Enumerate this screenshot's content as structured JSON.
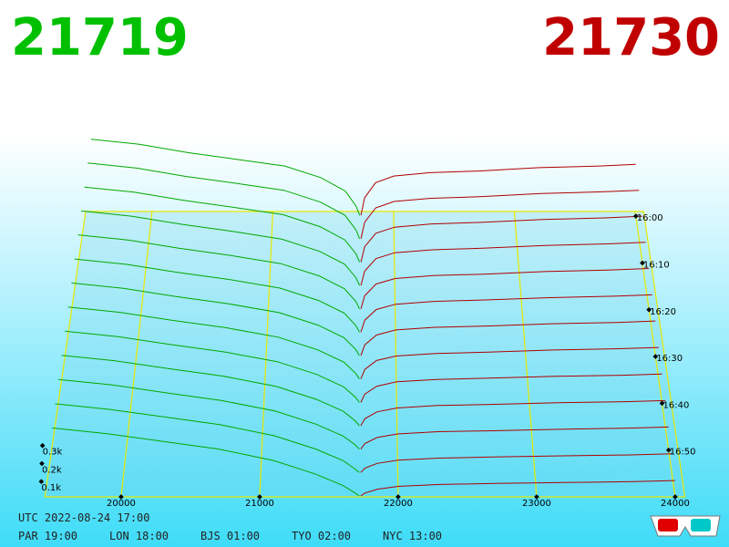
{
  "chart_data": {
    "type": "depth3d",
    "best_bid": 21719,
    "best_ask": 21730,
    "bid_color": "#00a800",
    "ask_color": "#b00000",
    "floor_color": "#e8e800",
    "xlim": [
      19450,
      24070
    ],
    "xticks": [
      20000,
      21000,
      22000,
      23000,
      24000
    ],
    "ylim": [
      0,
      500
    ],
    "yticks": [
      {
        "value": 100,
        "label": "0.1k"
      },
      {
        "value": 200,
        "label": "0.2k"
      },
      {
        "value": 300,
        "label": "0.3k"
      }
    ],
    "tlim": [
      "15:59",
      "17:00"
    ],
    "tticks": [
      "16:00",
      "16:10",
      "16:20",
      "16:30",
      "16:40",
      "16:50"
    ],
    "bid_prices": [
      21719,
      21690,
      21600,
      21400,
      21100,
      20700,
      20300,
      19900,
      19500
    ],
    "ask_prices": [
      21730,
      21760,
      21850,
      22000,
      22300,
      22700,
      23200,
      23700,
      24000
    ],
    "snapshots": [
      {
        "time": "16:00",
        "bids": [
          5,
          60,
          150,
          230,
          300,
          340,
          380,
          430,
          460
        ],
        "asks": [
          5,
          110,
          200,
          240,
          260,
          270,
          290,
          300,
          310
        ]
      },
      {
        "time": "16:05",
        "bids": [
          5,
          57,
          143,
          221,
          291,
          333,
          373,
          422,
          452
        ],
        "asks": [
          5,
          103,
          187,
          225,
          244,
          253,
          272,
          282,
          291
        ]
      },
      {
        "time": "16:10",
        "bids": [
          5,
          53,
          135,
          212,
          282,
          325,
          365,
          413,
          443
        ],
        "asks": [
          5,
          95,
          173,
          209,
          228,
          237,
          254,
          263,
          273
        ]
      },
      {
        "time": "16:15",
        "bids": [
          5,
          50,
          128,
          202,
          272,
          318,
          358,
          405,
          435
        ],
        "asks": [
          5,
          88,
          160,
          194,
          211,
          220,
          236,
          245,
          254
        ]
      },
      {
        "time": "16:20",
        "bids": [
          5,
          47,
          120,
          193,
          263,
          310,
          350,
          397,
          427
        ],
        "asks": [
          5,
          80,
          147,
          178,
          195,
          203,
          218,
          227,
          235
        ]
      },
      {
        "time": "16:25",
        "bids": [
          5,
          43,
          113,
          184,
          254,
          303,
          343,
          388,
          418
        ],
        "asks": [
          5,
          73,
          133,
          163,
          179,
          187,
          200,
          208,
          216
        ]
      },
      {
        "time": "16:30",
        "bids": [
          5,
          40,
          105,
          175,
          245,
          295,
          335,
          380,
          410
        ],
        "asks": [
          5,
          65,
          120,
          148,
          163,
          170,
          183,
          190,
          198
        ]
      },
      {
        "time": "16:35",
        "bids": [
          5,
          37,
          98,
          166,
          236,
          288,
          328,
          372,
          402
        ],
        "asks": [
          5,
          58,
          107,
          132,
          146,
          153,
          165,
          172,
          179
        ]
      },
      {
        "time": "16:40",
        "bids": [
          5,
          33,
          90,
          157,
          227,
          280,
          320,
          363,
          393
        ],
        "asks": [
          5,
          50,
          93,
          117,
          130,
          137,
          147,
          153,
          160
        ]
      },
      {
        "time": "16:45",
        "bids": [
          5,
          30,
          83,
          147,
          217,
          273,
          313,
          355,
          385
        ],
        "asks": [
          5,
          43,
          80,
          101,
          114,
          120,
          129,
          135,
          141
        ]
      },
      {
        "time": "16:50",
        "bids": [
          5,
          27,
          75,
          138,
          208,
          265,
          305,
          347,
          377
        ],
        "asks": [
          5,
          35,
          67,
          86,
          98,
          103,
          111,
          117,
          123
        ]
      },
      {
        "time": "16:55",
        "bids": [
          5,
          23,
          68,
          129,
          199,
          258,
          298,
          338,
          368
        ],
        "asks": [
          5,
          28,
          53,
          70,
          81,
          87,
          93,
          98,
          104
        ]
      },
      {
        "time": "17:00",
        "bids": [
          5,
          20,
          60,
          120,
          190,
          250,
          290,
          330,
          360
        ],
        "asks": [
          5,
          20,
          40,
          55,
          65,
          70,
          75,
          80,
          85
        ]
      }
    ]
  },
  "footer": {
    "utc": "UTC 2022-08-24 17:00",
    "zones": [
      "PAR 19:00",
      "LON 18:00",
      "BJS 01:00",
      "TYO 02:00",
      "NYC 13:00"
    ]
  }
}
